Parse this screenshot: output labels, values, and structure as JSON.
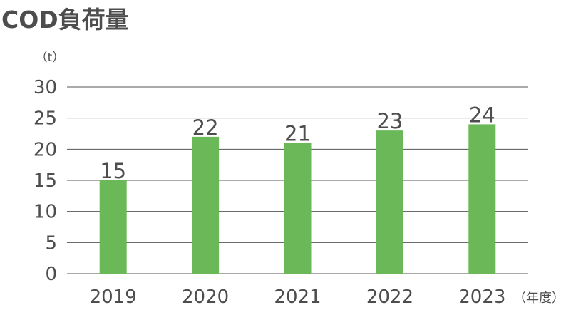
{
  "title": "COD負荷量",
  "chart_data": {
    "type": "bar",
    "title": "COD負荷量",
    "ylabel": "（t）",
    "xlabel": "（年度）",
    "categories": [
      "2019",
      "2020",
      "2021",
      "2022",
      "2023"
    ],
    "values": [
      15,
      22,
      21,
      23,
      24
    ],
    "ylim": [
      0,
      30
    ],
    "yticks": [
      0,
      5,
      10,
      15,
      20,
      25,
      30
    ],
    "grid": true,
    "legend": false,
    "colors": {
      "bar": "#6ab858",
      "grid": "#555555",
      "text": "#4d4d4d"
    }
  }
}
